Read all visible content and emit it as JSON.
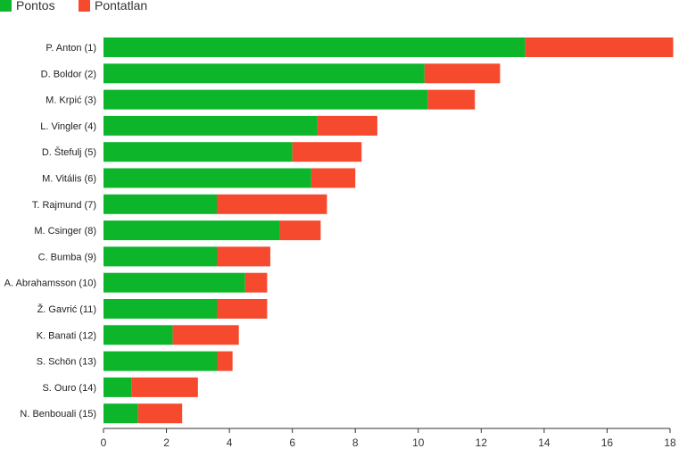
{
  "chart_data": {
    "type": "bar",
    "orientation": "horizontal",
    "stacked": true,
    "title": "",
    "xlabel": "",
    "ylabel": "",
    "xlim": [
      0,
      18
    ],
    "x_ticks": [
      0,
      2,
      4,
      6,
      8,
      10,
      12,
      14,
      16,
      18
    ],
    "grid": false,
    "legend_position": "top-left",
    "categories": [
      "P. Anton (1)",
      "D. Boldor (2)",
      "M. Krpić (3)",
      "L. Vingler (4)",
      "D. Štefulj (5)",
      "M. Vitális (6)",
      "T. Rajmund (7)",
      "M. Csinger (8)",
      "C. Bumba (9)",
      "A. Abrahamsson (10)",
      "Ž. Gavrić (11)",
      "K. Banati (12)",
      "S. Schön (13)",
      "S. Ouro (14)",
      "N. Benbouali (15)"
    ],
    "series": [
      {
        "name": "Pontos",
        "color": "#0db52b",
        "values": [
          13.4,
          10.2,
          10.3,
          6.8,
          6.0,
          6.6,
          3.6,
          5.6,
          3.6,
          4.5,
          3.6,
          2.2,
          3.6,
          0.9,
          1.1
        ]
      },
      {
        "name": "Pontatlan",
        "color": "#f64a2e",
        "values": [
          4.7,
          2.4,
          1.5,
          1.9,
          2.2,
          1.4,
          3.5,
          1.3,
          1.7,
          0.7,
          1.6,
          2.1,
          0.5,
          2.1,
          1.4
        ]
      }
    ]
  }
}
